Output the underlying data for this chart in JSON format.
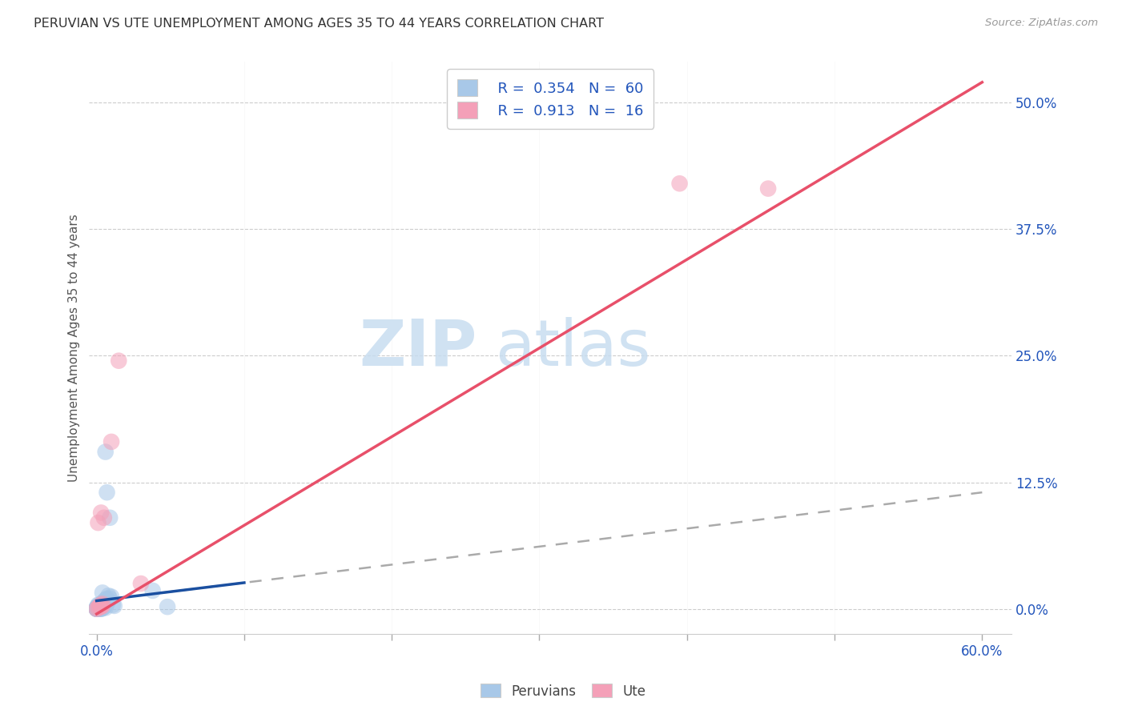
{
  "title": "PERUVIAN VS UTE UNEMPLOYMENT AMONG AGES 35 TO 44 YEARS CORRELATION CHART",
  "source": "Source: ZipAtlas.com",
  "xlabel_ticks": [
    "0.0%",
    "",
    "",
    "",
    "",
    "",
    "60.0%"
  ],
  "xlabel_tick_vals": [
    0.0,
    0.1,
    0.2,
    0.3,
    0.4,
    0.5,
    0.6
  ],
  "ylabel_ticks": [
    "50.0%",
    "37.5%",
    "25.0%",
    "12.5%",
    "0.0%"
  ],
  "ylabel_tick_vals": [
    0.5,
    0.375,
    0.25,
    0.125,
    0.0
  ],
  "ylabel": "Unemployment Among Ages 35 to 44 years",
  "xlim": [
    -0.005,
    0.62
  ],
  "ylim": [
    -0.025,
    0.54
  ],
  "legend_r1": "R = 0.354",
  "legend_n1": "N = 60",
  "legend_r2": "R = 0.913",
  "legend_n2": "N = 16",
  "peruvian_color": "#a8c8e8",
  "ute_color": "#f4a0b8",
  "trend_blue_solid": "#1a4fa0",
  "trend_gray_dashed": "#aaaaaa",
  "trend_pink": "#e8506a",
  "watermark_zip": "#c8ddf0",
  "watermark_atlas": "#c8ddf0",
  "peru_x": [
    0.0,
    0.001,
    0.002,
    0.003,
    0.0,
    0.001,
    0.002,
    0.004,
    0.001,
    0.002,
    0.003,
    0.004,
    0.005,
    0.003,
    0.002,
    0.001,
    0.0,
    0.003,
    0.004,
    0.005,
    0.006,
    0.003,
    0.005,
    0.007,
    0.006,
    0.004,
    0.002,
    0.001,
    0.0,
    0.003,
    0.005,
    0.008,
    0.006,
    0.004,
    0.003,
    0.002,
    0.001,
    0.0,
    0.005,
    0.007,
    0.009,
    0.006,
    0.004,
    0.003,
    0.001,
    0.0,
    0.008,
    0.01,
    0.007,
    0.005,
    0.012,
    0.009,
    0.011,
    0.048,
    0.038,
    0.003,
    0.006,
    0.001,
    0.004,
    0.002
  ],
  "peru_y": [
    0.0,
    0.002,
    0.001,
    0.003,
    0.001,
    0.002,
    0.0,
    0.001,
    0.003,
    0.004,
    0.002,
    0.001,
    0.003,
    0.0,
    0.002,
    0.004,
    0.001,
    0.003,
    0.005,
    0.002,
    0.001,
    0.0,
    0.003,
    0.115,
    0.155,
    0.016,
    0.002,
    0.001,
    0.0,
    0.003,
    0.005,
    0.013,
    0.009,
    0.006,
    0.003,
    0.002,
    0.001,
    0.0,
    0.007,
    0.01,
    0.09,
    0.006,
    0.004,
    0.002,
    0.001,
    0.0,
    0.008,
    0.012,
    0.005,
    0.002,
    0.003,
    0.01,
    0.004,
    0.002,
    0.018,
    0.002,
    0.006,
    0.0,
    0.004,
    0.002
  ],
  "ute_x": [
    0.0,
    0.001,
    0.002,
    0.003,
    0.001,
    0.002,
    0.003,
    0.004,
    0.005,
    0.003,
    0.004,
    0.01,
    0.015,
    0.03,
    0.395,
    0.455
  ],
  "ute_y": [
    0.0,
    0.001,
    0.002,
    0.095,
    0.085,
    0.003,
    0.004,
    0.005,
    0.09,
    0.002,
    0.003,
    0.165,
    0.245,
    0.025,
    0.42,
    0.415
  ],
  "peru_trend_x": [
    0.0,
    0.6
  ],
  "peru_trend_y_start": 0.008,
  "peru_trend_y_end": 0.115,
  "ute_trend_x": [
    0.0,
    0.6
  ],
  "ute_trend_y_start": -0.005,
  "ute_trend_y_end": 0.52
}
